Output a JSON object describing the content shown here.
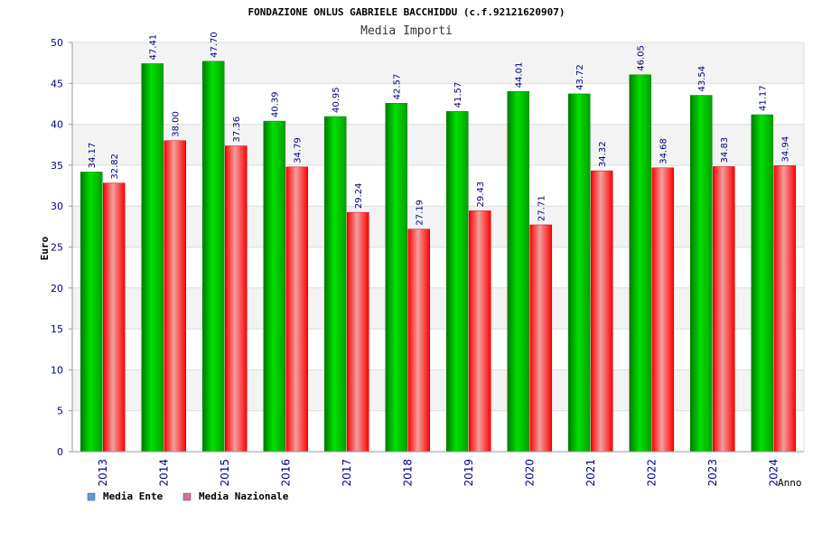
{
  "chart_data": {
    "type": "bar",
    "title": "FONDAZIONE ONLUS GABRIELE BACCHIDDU (c.f.92121620907)",
    "subtitle": "Media Importi",
    "ylabel": "Euro",
    "xlabel": "Anno",
    "ylim": [
      0,
      50
    ],
    "yticks": [
      0,
      5,
      10,
      15,
      20,
      25,
      30,
      35,
      40,
      45,
      50
    ],
    "grid": true,
    "legend_position": "bottom-left",
    "categories": [
      "2013",
      "2014",
      "2015",
      "2016",
      "2017",
      "2018",
      "2019",
      "2020",
      "2021",
      "2022",
      "2023",
      "2024"
    ],
    "series": [
      {
        "name": "Media Ente",
        "color": "#00c000",
        "legend_color": "#5b9bd5",
        "values": [
          34.17,
          47.41,
          47.7,
          40.39,
          40.95,
          42.57,
          41.57,
          44.01,
          43.72,
          46.05,
          43.54,
          41.17
        ],
        "labels": [
          "34.17",
          "47.41",
          "47.70",
          "40.39",
          "40.95",
          "42.57",
          "41.57",
          "44.01",
          "43.72",
          "46.05",
          "43.54",
          "41.17"
        ]
      },
      {
        "name": "Media Nazionale",
        "color": "#ee0000",
        "legend_color": "#d070a0",
        "values": [
          32.82,
          38.0,
          37.36,
          34.79,
          29.24,
          27.19,
          29.43,
          27.71,
          34.32,
          34.68,
          34.83,
          34.94
        ],
        "labels": [
          "32.82",
          "38.00",
          "37.36",
          "34.79",
          "29.24",
          "27.19",
          "29.43",
          "27.71",
          "34.32",
          "34.68",
          "34.83",
          "34.94"
        ]
      }
    ]
  }
}
